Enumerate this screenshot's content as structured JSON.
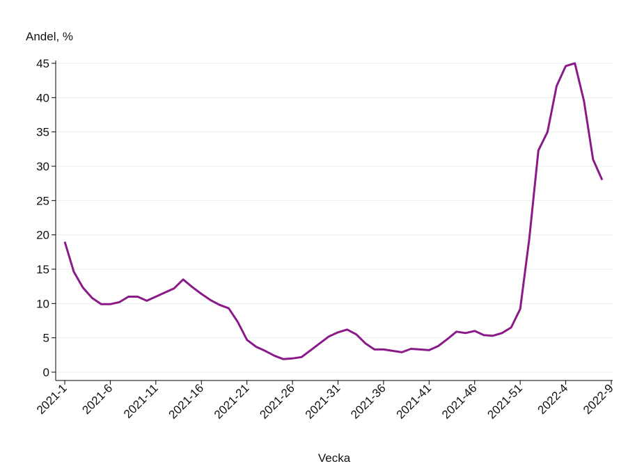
{
  "chart_data": {
    "type": "line",
    "y_label": "Andel, %",
    "x_label": "Vecka",
    "categories": [
      "2021-1",
      null,
      null,
      null,
      null,
      "2021-6",
      null,
      null,
      null,
      null,
      "2021-11",
      null,
      null,
      null,
      null,
      "2021-16",
      null,
      null,
      null,
      null,
      "2021-21",
      null,
      null,
      null,
      null,
      "2021-26",
      null,
      null,
      null,
      null,
      "2021-31",
      null,
      null,
      null,
      null,
      "2021-36",
      null,
      null,
      null,
      null,
      "2021-41",
      null,
      null,
      null,
      null,
      "2021-46",
      null,
      null,
      null,
      null,
      "2021-51",
      null,
      null,
      null,
      null,
      "2022-4",
      null,
      null,
      null,
      null,
      "2022-9"
    ],
    "series": [
      {
        "color": "#8b1a89",
        "values": [
          19.0,
          14.6,
          12.3,
          10.8,
          9.9,
          9.9,
          10.2,
          11.0,
          11.0,
          10.4,
          11.0,
          11.6,
          12.2,
          13.5,
          12.4,
          11.4,
          10.5,
          9.8,
          9.3,
          7.3,
          4.7,
          3.7,
          3.1,
          2.4,
          1.9,
          2.0,
          2.2,
          3.2,
          4.2,
          5.2,
          5.8,
          6.2,
          5.5,
          4.2,
          3.3,
          3.3,
          3.1,
          2.9,
          3.4,
          3.3,
          3.2,
          3.8,
          4.8,
          5.9,
          5.7,
          6.0,
          5.4,
          5.3,
          5.7,
          6.5,
          9.2,
          19.5,
          32.3,
          35.0,
          41.7,
          44.6,
          45.0,
          39.5,
          31.0,
          28.0,
          null
        ]
      }
    ],
    "ylim": [
      0,
      45
    ],
    "yticks": [
      0,
      5,
      10,
      15,
      20,
      25,
      30,
      35,
      40,
      45
    ],
    "grid": true
  }
}
